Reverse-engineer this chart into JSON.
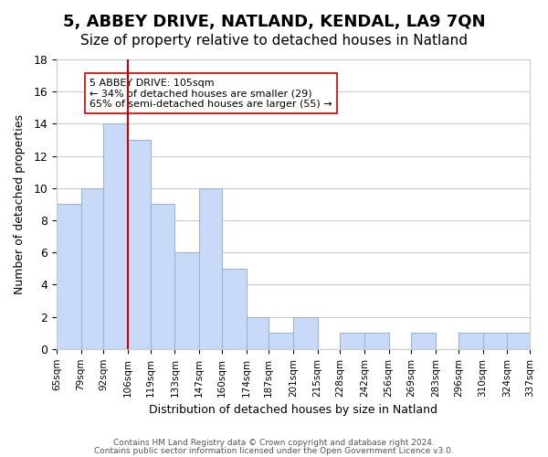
{
  "title": "5, ABBEY DRIVE, NATLAND, KENDAL, LA9 7QN",
  "subtitle": "Size of property relative to detached houses in Natland",
  "xlabel": "Distribution of detached houses by size in Natland",
  "ylabel": "Number of detached properties",
  "footer1": "Contains HM Land Registry data © Crown copyright and database right 2024.",
  "footer2": "Contains public sector information licensed under the Open Government Licence v3.0.",
  "bar_edges": [
    65,
    79,
    92,
    106,
    119,
    133,
    147,
    160,
    174,
    187,
    201,
    215,
    228,
    242,
    256,
    269,
    283,
    296,
    310,
    324,
    337
  ],
  "bar_heights": [
    9,
    10,
    14,
    13,
    9,
    6,
    10,
    5,
    2,
    1,
    2,
    0,
    1,
    1,
    0,
    1,
    0,
    1,
    1,
    1
  ],
  "bar_color": "#c9daf8",
  "bar_edge_color": "#a0b4d0",
  "vline_x": 106,
  "vline_color": "#cc0000",
  "ylim": [
    0,
    18
  ],
  "yticks": [
    0,
    2,
    4,
    6,
    8,
    10,
    12,
    14,
    16,
    18
  ],
  "annotation_text": "5 ABBEY DRIVE: 105sqm\n← 34% of detached houses are smaller (29)\n65% of semi-detached houses are larger (55) →",
  "bg_color": "#ffffff",
  "grid_color": "#cccccc",
  "title_fontsize": 13,
  "subtitle_fontsize": 11,
  "tick_labels": [
    "65sqm",
    "79sqm",
    "92sqm",
    "106sqm",
    "119sqm",
    "133sqm",
    "147sqm",
    "160sqm",
    "174sqm",
    "187sqm",
    "201sqm",
    "215sqm",
    "228sqm",
    "242sqm",
    "256sqm",
    "269sqm",
    "283sqm",
    "296sqm",
    "310sqm",
    "324sqm",
    "337sqm"
  ]
}
